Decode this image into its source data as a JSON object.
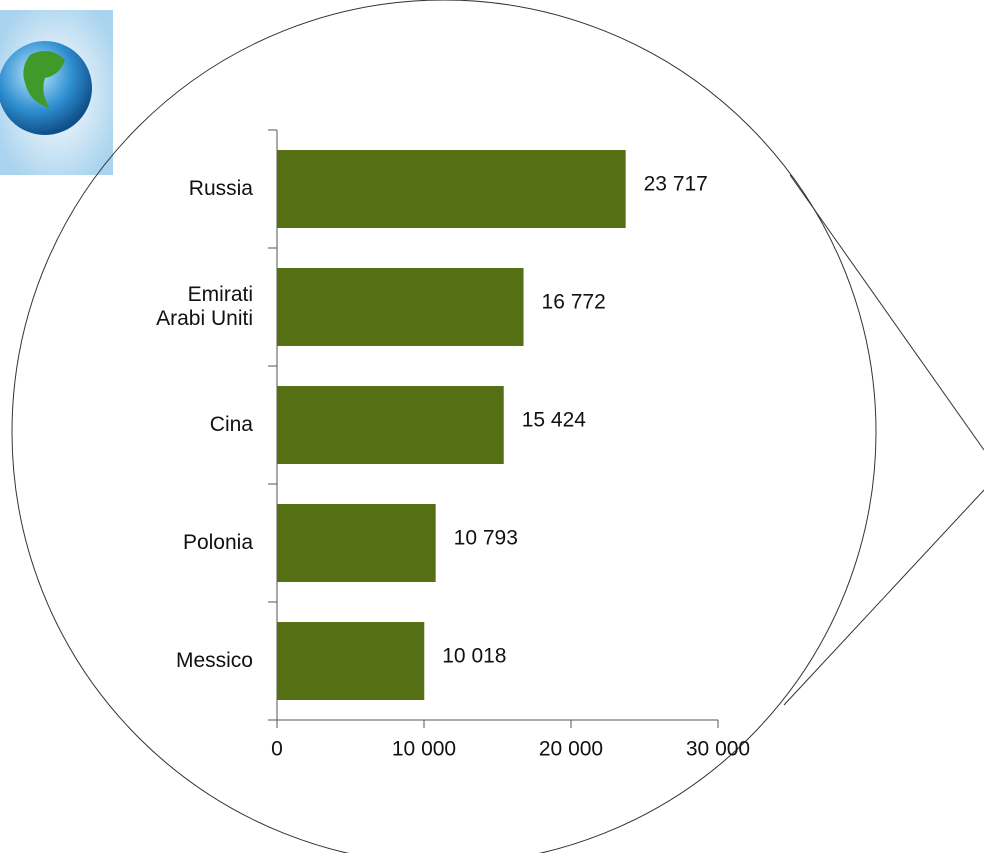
{
  "chart_data": {
    "type": "bar",
    "orientation": "horizontal",
    "categories": [
      "Russia",
      "Emirati\nArabi Uniti",
      "Cina",
      "Polonia",
      "Messico"
    ],
    "values": [
      23717,
      16772,
      15424,
      10793,
      10018
    ],
    "value_labels": [
      "23 717",
      "16 772",
      "15 424",
      "10 793",
      "10 018"
    ],
    "color": "#546f14",
    "xlim": [
      0,
      30000
    ],
    "xticks": [
      0,
      {
        "value": 10000,
        "label": "10 000"
      },
      {
        "value": 20000,
        "label": "20 000"
      },
      {
        "value": 30000,
        "label": "30 000"
      }
    ]
  }
}
